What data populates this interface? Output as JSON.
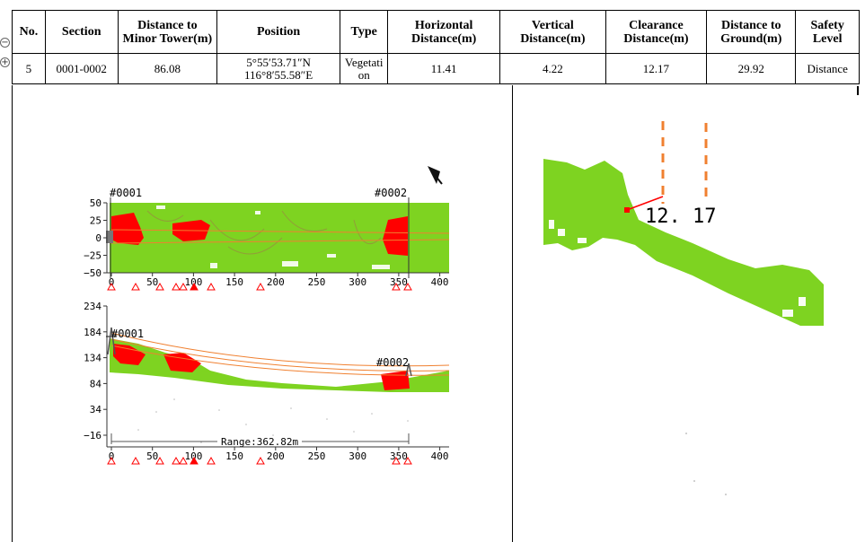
{
  "controls": {
    "collapse": "−",
    "expand": "+"
  },
  "table": {
    "headers": {
      "no": "No.",
      "section": "Section",
      "distance_minor": "Distance to Minor Tower(m)",
      "position": "Position",
      "type": "Type",
      "horizontal": "Horizontal Distance(m)",
      "vertical": "Vertical Distance(m)",
      "clearance": "Clearance Distance(m)",
      "ground": "Distance to Ground(m)",
      "safety": "Safety Level"
    },
    "row": {
      "no": "5",
      "section": "0001-0002",
      "distance_minor": "86.08",
      "position_lat": "5°55′53.71″N",
      "position_lon": "116°8′55.58″E",
      "type": "Vegetation",
      "horizontal": "11.41",
      "vertical": "4.22",
      "clearance": "12.17",
      "ground": "29.92",
      "safety": "Distance"
    }
  },
  "top_view": {
    "tower_start": "#0001",
    "tower_end": "#0002",
    "y_ticks": [
      "50",
      "25",
      "0",
      "−25",
      "−50"
    ],
    "x_ticks": [
      "0",
      "50",
      "100",
      "150",
      "200",
      "250",
      "300",
      "350",
      "400"
    ]
  },
  "side_view": {
    "tower_start": "#0001",
    "tower_end": "#0002",
    "y_ticks": [
      "234",
      "184",
      "134",
      "84",
      "34",
      "−16"
    ],
    "x_ticks": [
      "0",
      "50",
      "100",
      "150",
      "200",
      "250",
      "300",
      "350",
      "400"
    ],
    "range_label": "Range:362.82m"
  },
  "detail_view": {
    "clearance_label": "12. 17"
  },
  "colors": {
    "vegetation": "#7ed321",
    "hazard": "#ff0000",
    "conductor": "#f08030",
    "tower": "#777777",
    "axis": "#333333"
  }
}
